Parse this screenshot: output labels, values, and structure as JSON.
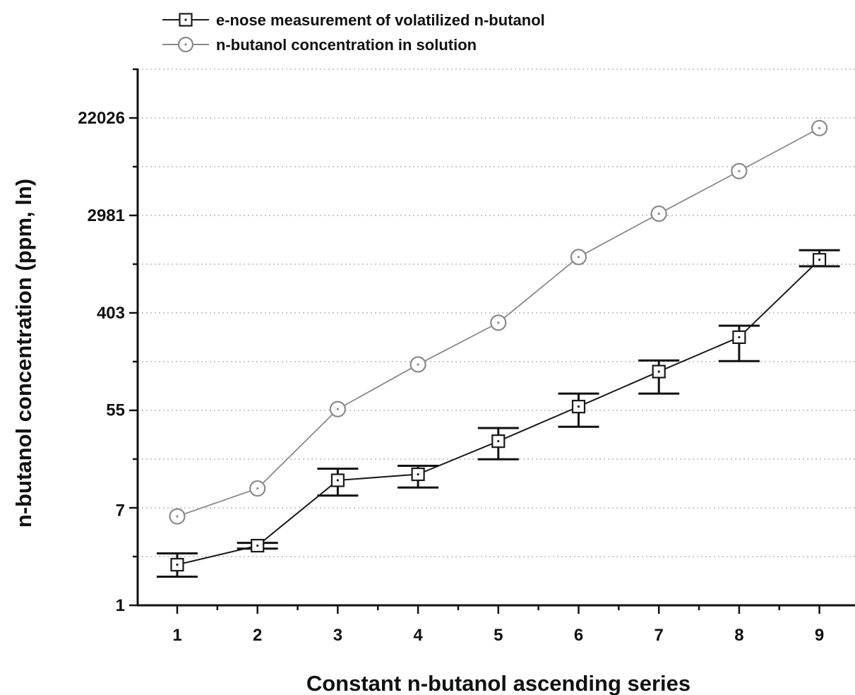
{
  "chart_data": {
    "type": "line",
    "title": "",
    "xlabel": "Constant n-butanol ascending series",
    "ylabel": "n-butanol concentration (ppm, ln)",
    "y_scale": "ln",
    "x_ticks": [
      1,
      2,
      3,
      4,
      5,
      6,
      7,
      8,
      9
    ],
    "y_ticks": [
      {
        "value": 1,
        "label": "1"
      },
      {
        "value": 7,
        "label": "7"
      },
      {
        "value": 55,
        "label": "55"
      },
      {
        "value": 403,
        "label": "403"
      },
      {
        "value": 2981,
        "label": "2981"
      },
      {
        "value": 22026,
        "label": "22026"
      }
    ],
    "xlim": [
      0.5,
      9.5
    ],
    "ylim": [
      1,
      80000
    ],
    "grid": "horizontal-dotted",
    "legend_position": "top-left",
    "series": [
      {
        "name": "e-nose measurement of volatilized n-butanol",
        "marker": "square",
        "color": "#1a1a1a",
        "x": [
          1,
          2,
          3,
          4,
          5,
          6,
          7,
          8,
          9
        ],
        "y": [
          2.3,
          3.4,
          13,
          14.7,
          29,
          59,
          121,
          245,
          1200
        ],
        "y_err_low": [
          1.8,
          3.2,
          9.5,
          11.2,
          20,
          39,
          77,
          150,
          1050
        ],
        "y_err_high": [
          2.9,
          3.6,
          16.5,
          17.5,
          38,
          77,
          152,
          310,
          1460
        ]
      },
      {
        "name": "n-butanol concentration in solution",
        "marker": "circle",
        "color": "#8a8a8a",
        "x": [
          1,
          2,
          3,
          4,
          5,
          6,
          7,
          8,
          9
        ],
        "y": [
          6.2,
          11,
          56,
          140,
          330,
          1270,
          3090,
          7400,
          17900
        ]
      }
    ]
  }
}
